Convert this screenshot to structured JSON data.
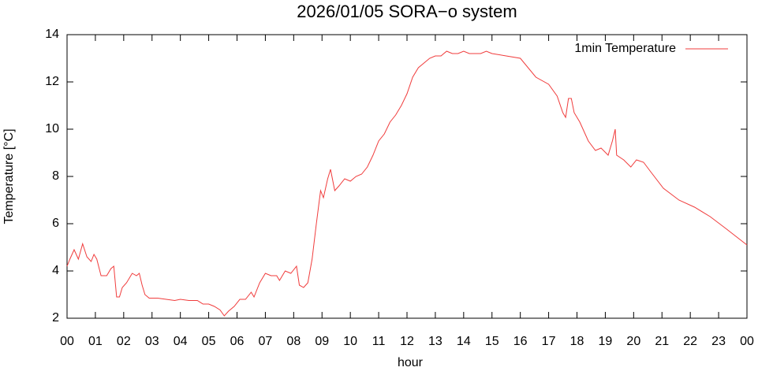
{
  "chart_data": {
    "type": "line",
    "title": "2026/01/05 SORA−o system",
    "xlabel": "hour",
    "ylabel": "Temperature [°C]",
    "x": [
      0,
      0.1,
      0.25,
      0.4,
      0.55,
      0.7,
      0.85,
      0.95,
      1.05,
      1.2,
      1.4,
      1.55,
      1.65,
      1.75,
      1.85,
      1.95,
      2.1,
      2.3,
      2.45,
      2.55,
      2.65,
      2.75,
      2.9,
      3.2,
      3.5,
      3.8,
      4.0,
      4.3,
      4.6,
      4.8,
      5.0,
      5.2,
      5.4,
      5.55,
      5.7,
      5.9,
      6.1,
      6.3,
      6.5,
      6.6,
      6.8,
      7.0,
      7.2,
      7.4,
      7.5,
      7.7,
      7.9,
      8.1,
      8.2,
      8.35,
      8.5,
      8.65,
      8.8,
      8.95,
      9.05,
      9.2,
      9.3,
      9.45,
      9.6,
      9.8,
      10.0,
      10.2,
      10.4,
      10.6,
      10.8,
      11.0,
      11.2,
      11.4,
      11.6,
      11.8,
      12.0,
      12.2,
      12.4,
      12.6,
      12.8,
      13.0,
      13.2,
      13.4,
      13.6,
      13.8,
      14.0,
      14.2,
      14.4,
      14.6,
      14.8,
      15.0,
      15.5,
      16.0,
      16.55,
      17.0,
      17.3,
      17.5,
      17.6,
      17.7,
      17.8,
      17.9,
      18.1,
      18.4,
      18.65,
      18.85,
      19.1,
      19.25,
      19.35,
      19.4,
      19.65,
      19.9,
      20.1,
      20.35,
      20.6,
      21.05,
      21.6,
      22.15,
      22.7,
      23.25,
      24.0
    ],
    "series": [
      {
        "name": "1min Temperature",
        "color": "#f03c3c",
        "values": [
          4.2,
          4.5,
          4.9,
          4.5,
          5.15,
          4.6,
          4.4,
          4.7,
          4.5,
          3.8,
          3.8,
          4.1,
          4.2,
          2.9,
          2.9,
          3.3,
          3.5,
          3.9,
          3.8,
          3.9,
          3.4,
          3.0,
          2.85,
          2.85,
          2.8,
          2.75,
          2.8,
          2.75,
          2.75,
          2.6,
          2.6,
          2.5,
          2.35,
          2.1,
          2.3,
          2.5,
          2.8,
          2.8,
          3.1,
          2.9,
          3.5,
          3.9,
          3.8,
          3.8,
          3.6,
          4.0,
          3.9,
          4.2,
          3.4,
          3.3,
          3.5,
          4.5,
          6.0,
          7.4,
          7.1,
          7.9,
          8.3,
          7.4,
          7.6,
          7.9,
          7.8,
          8.0,
          8.1,
          8.4,
          8.9,
          9.5,
          9.8,
          10.3,
          10.6,
          11.0,
          11.5,
          12.2,
          12.6,
          12.8,
          13.0,
          13.1,
          13.1,
          13.3,
          13.2,
          13.2,
          13.3,
          13.2,
          13.2,
          13.2,
          13.3,
          13.2,
          13.1,
          13.0,
          12.2,
          11.9,
          11.4,
          10.7,
          10.5,
          11.3,
          11.3,
          10.7,
          10.3,
          9.5,
          9.1,
          9.2,
          8.9,
          9.5,
          10.0,
          8.9,
          8.7,
          8.4,
          8.7,
          8.6,
          8.2,
          7.5,
          7.0,
          6.7,
          6.3,
          5.8,
          5.1
        ]
      }
    ],
    "xlim": [
      0,
      24
    ],
    "xticks": [
      {
        "value": 0,
        "label": "00"
      },
      {
        "value": 1,
        "label": "01"
      },
      {
        "value": 2,
        "label": "02"
      },
      {
        "value": 3,
        "label": "03"
      },
      {
        "value": 4,
        "label": "04"
      },
      {
        "value": 5,
        "label": "05"
      },
      {
        "value": 6,
        "label": "06"
      },
      {
        "value": 7,
        "label": "07"
      },
      {
        "value": 8,
        "label": "08"
      },
      {
        "value": 9,
        "label": "09"
      },
      {
        "value": 10,
        "label": "10"
      },
      {
        "value": 11,
        "label": "11"
      },
      {
        "value": 12,
        "label": "12"
      },
      {
        "value": 13,
        "label": "13"
      },
      {
        "value": 14,
        "label": "14"
      },
      {
        "value": 15,
        "label": "15"
      },
      {
        "value": 16,
        "label": "16"
      },
      {
        "value": 17,
        "label": "17"
      },
      {
        "value": 18,
        "label": "18"
      },
      {
        "value": 19,
        "label": "19"
      },
      {
        "value": 20,
        "label": "20"
      },
      {
        "value": 21,
        "label": "21"
      },
      {
        "value": 22,
        "label": "22"
      },
      {
        "value": 23,
        "label": "23"
      },
      {
        "value": 24,
        "label": "00"
      }
    ],
    "ylim": [
      2,
      14
    ],
    "yticks": [
      2,
      4,
      6,
      8,
      10,
      12,
      14
    ],
    "grid": false,
    "legend": "top-right"
  }
}
